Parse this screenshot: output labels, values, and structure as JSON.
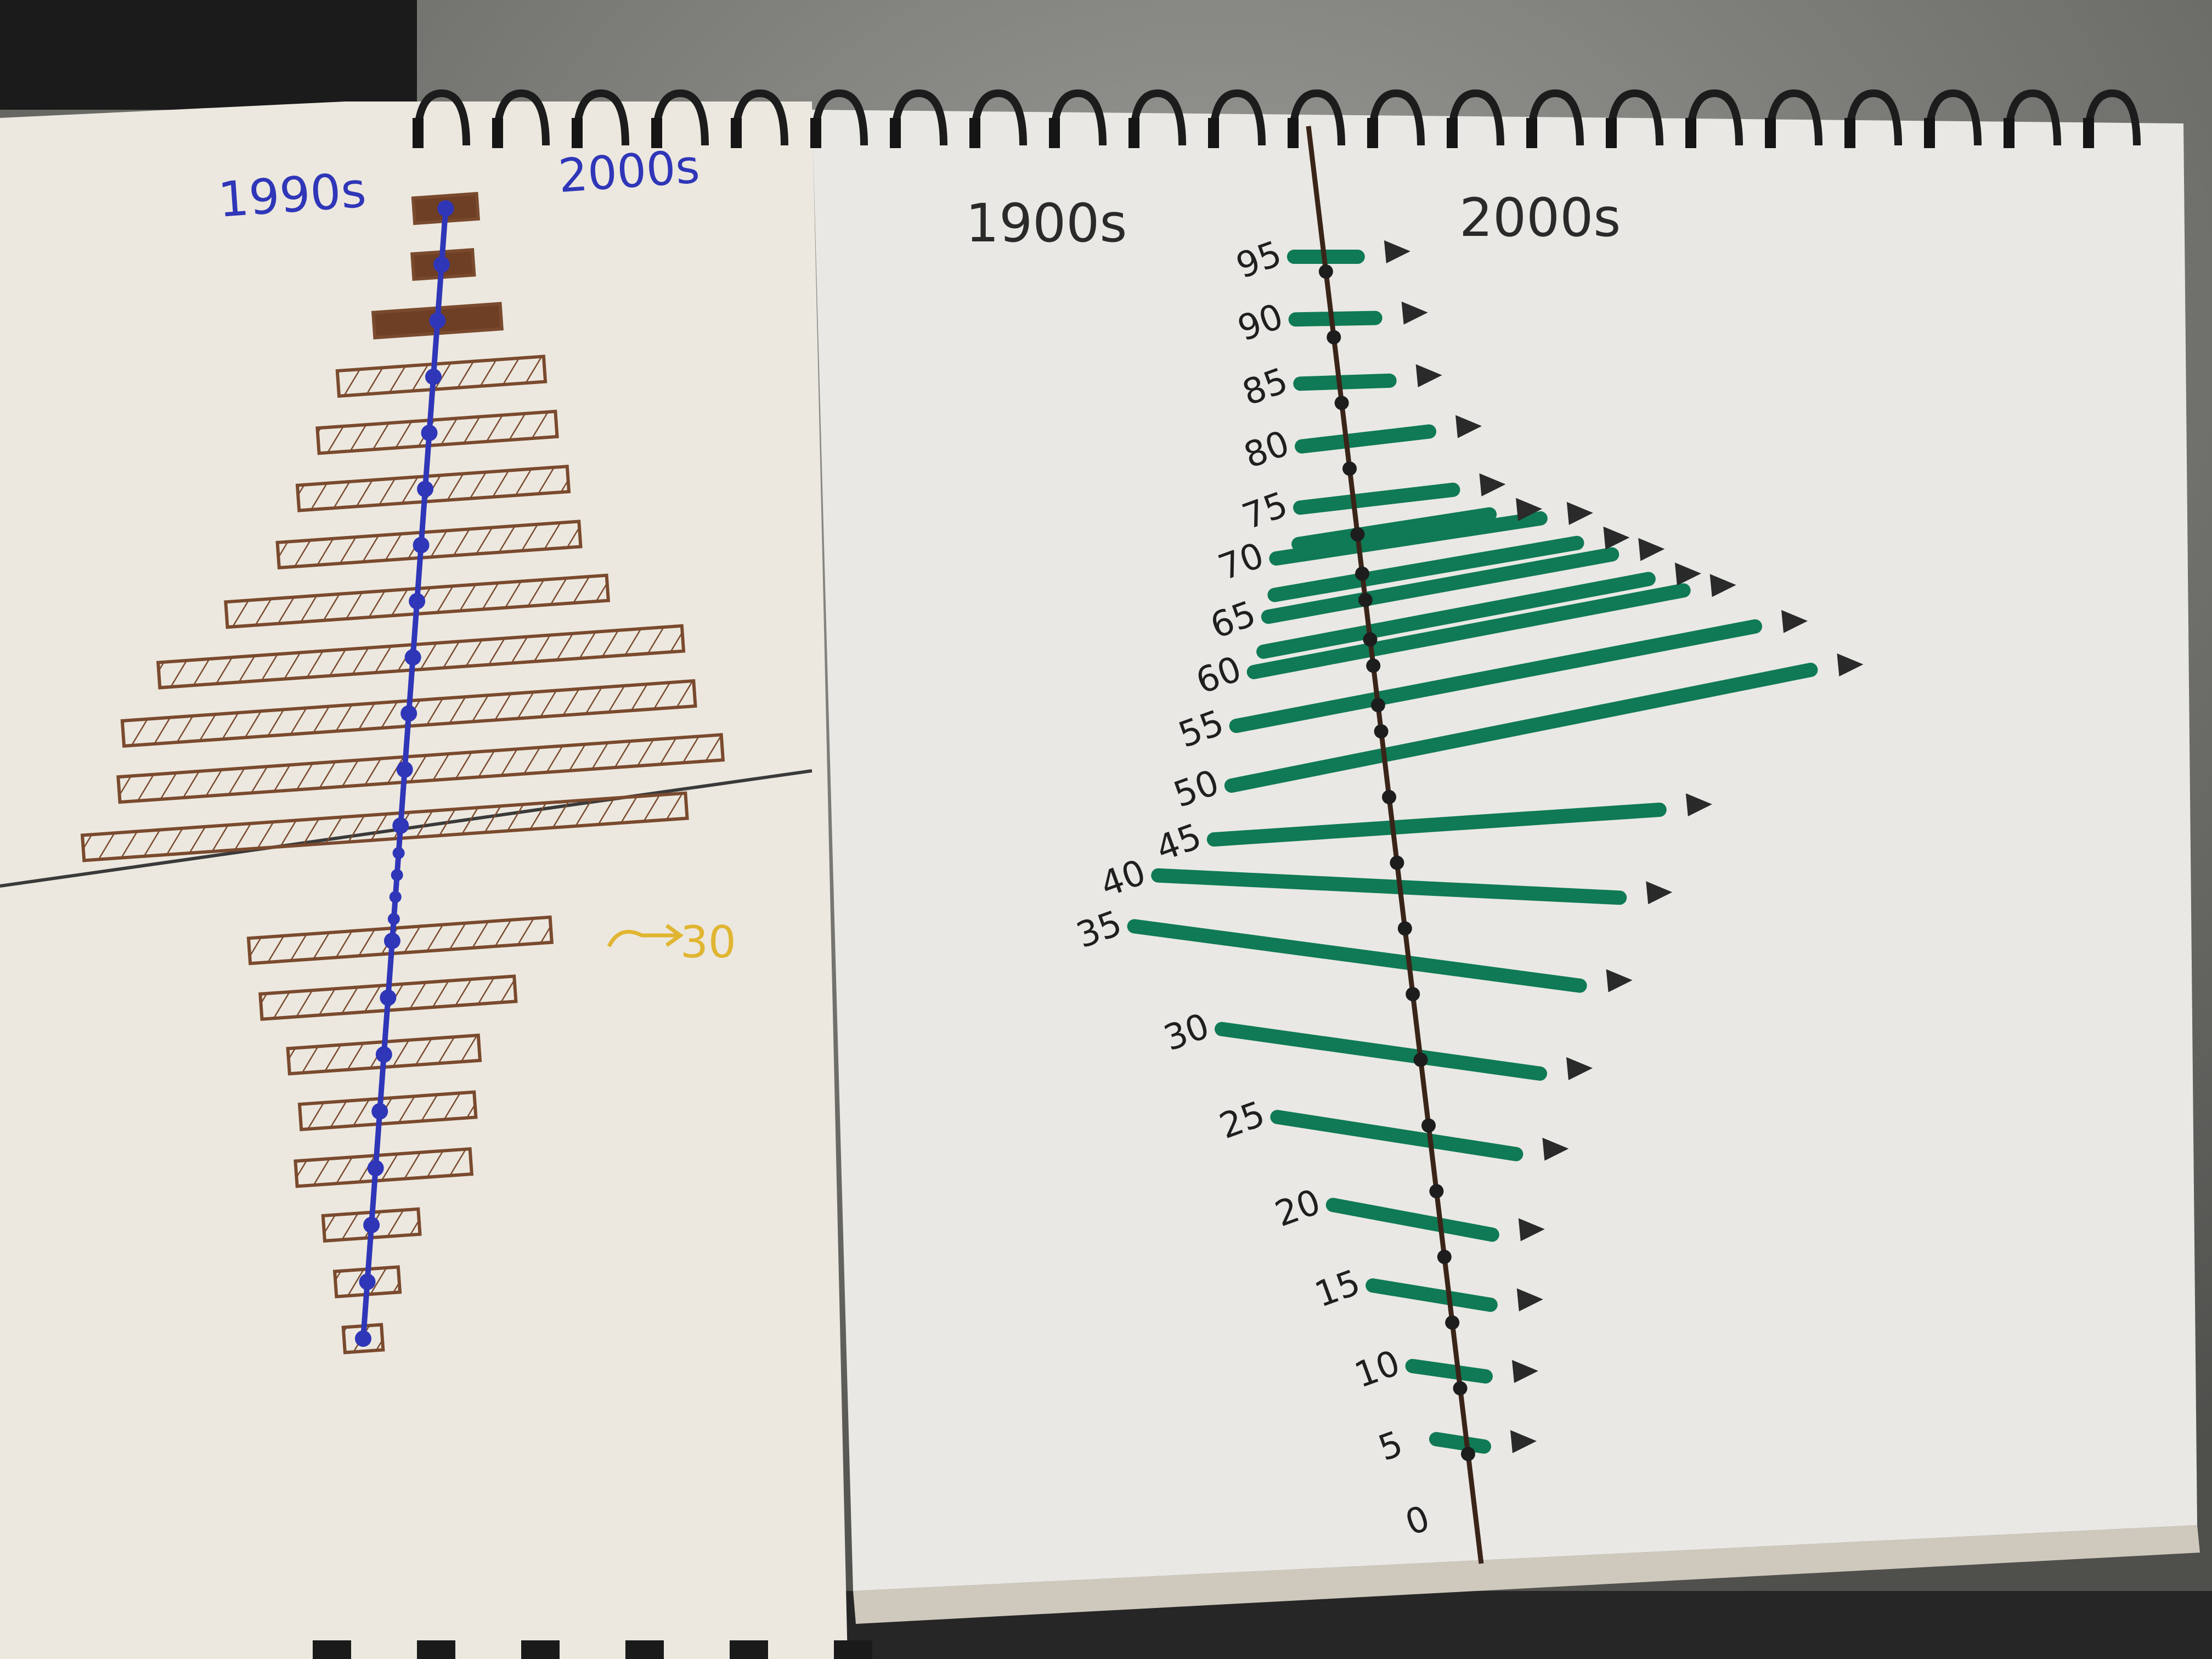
{
  "chart_data": [
    {
      "type": "bar",
      "orientation": "horizontal",
      "layout": "diverging-about-central-axis",
      "title": "",
      "left_label": "1990s",
      "right_label": "2000s",
      "colors": {
        "bars": "#7a4a2e",
        "axis": "#2f36b8"
      },
      "rows_top_to_bottom": [
        {
          "left": 1.0,
          "right": 1.0
        },
        {
          "left": 0.9,
          "right": 1.0
        },
        {
          "left": 2.0,
          "right": 2.0
        },
        {
          "left": 3.0,
          "right": 3.5
        },
        {
          "left": 3.5,
          "right": 4.0
        },
        {
          "left": 4.0,
          "right": 4.5
        },
        {
          "left": 4.5,
          "right": 5.0
        },
        {
          "left": 6.0,
          "right": 6.0
        },
        {
          "left": 8.0,
          "right": 8.5
        },
        {
          "left": 9.0,
          "right": 9.0
        },
        {
          "left": 9.0,
          "right": 10.0
        },
        {
          "left": 10.0,
          "right": 9.0
        },
        {
          "left": 4.5,
          "right": 5.0
        },
        {
          "left": 4.0,
          "right": 4.0
        },
        {
          "left": 3.0,
          "right": 3.0
        },
        {
          "left": 2.5,
          "right": 3.0
        },
        {
          "left": 2.5,
          "right": 3.0
        },
        {
          "left": 1.5,
          "right": 1.5
        },
        {
          "left": 1.0,
          "right": 1.0
        },
        {
          "left": 0.6,
          "right": 0.6
        }
      ],
      "annotation": "30"
    },
    {
      "type": "bar",
      "orientation": "horizontal",
      "layout": "diverging-about-central-axis",
      "title": "",
      "left_label": "1900s",
      "right_label": "2000s",
      "colors": {
        "bars": "#0f7a55",
        "axis": "#3a2418",
        "arrows": "#2a2a2a"
      },
      "age_labels": [
        "95",
        "90",
        "85",
        "80",
        "75",
        "70",
        "65",
        "60",
        "55",
        "50",
        "45",
        "40",
        "35",
        "30",
        "25",
        "20",
        "15",
        "10",
        "5",
        "0"
      ],
      "rows_top_to_bottom": [
        {
          "age": 95,
          "left": 1.0,
          "right": 1.0
        },
        {
          "age": 90,
          "left": 1.2,
          "right": 1.3
        },
        {
          "age": 85,
          "left": 1.3,
          "right": 1.5
        },
        {
          "age": 80,
          "left": 1.5,
          "right": 2.5
        },
        {
          "age": 75,
          "left": 1.8,
          "right": 3.0
        },
        {
          "age": 72,
          "left": 2.0,
          "right": 4.0
        },
        {
          "age": 70,
          "left": 2.8,
          "right": 5.5
        },
        {
          "age": 67,
          "left": 3.0,
          "right": 6.5
        },
        {
          "age": 65,
          "left": 3.3,
          "right": 7.5
        },
        {
          "age": 62,
          "left": 3.6,
          "right": 8.5
        },
        {
          "age": 60,
          "left": 4.0,
          "right": 9.5
        },
        {
          "age": 55,
          "left": 4.8,
          "right": 11.5
        },
        {
          "age": 50,
          "left": 5.2,
          "right": 13.0
        },
        {
          "age": 45,
          "left": 6.0,
          "right": 8.0
        },
        {
          "age": 40,
          "left": 8.0,
          "right": 6.5
        },
        {
          "age": 35,
          "left": 9.0,
          "right": 5.0
        },
        {
          "age": 30,
          "left": 6.5,
          "right": 3.5
        },
        {
          "age": 25,
          "left": 5.0,
          "right": 2.5
        },
        {
          "age": 20,
          "left": 3.5,
          "right": 1.5
        },
        {
          "age": 15,
          "left": 2.5,
          "right": 1.2
        },
        {
          "age": 10,
          "left": 1.5,
          "right": 0.8
        },
        {
          "age": 5,
          "left": 1.0,
          "right": 0.5
        }
      ]
    }
  ]
}
